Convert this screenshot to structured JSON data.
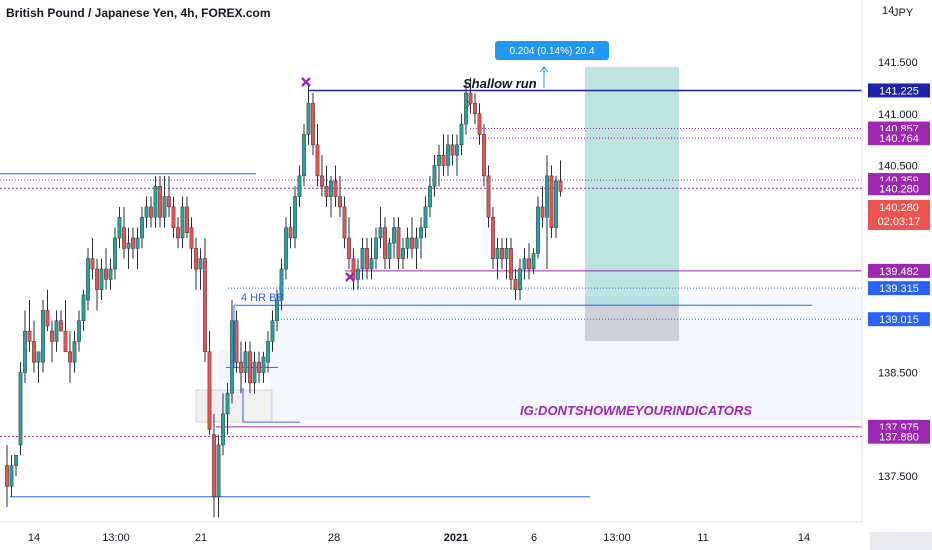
{
  "chart_data": {
    "type": "candlestick",
    "title": "British Pound / Japanese Yen, 4h, FOREX.com",
    "currency": "JPY",
    "ylim": [
      137.1,
      142.0
    ],
    "xlim": [
      0,
      227
    ],
    "y_ticks": [
      137.5,
      138.0,
      138.5,
      139.0,
      139.5,
      140.0,
      140.5,
      141.0,
      141.5
    ],
    "y_tick_labels": [
      "137.500",
      "",
      "138.500",
      "",
      "",
      "",
      "140.500",
      "141.000",
      "141.500"
    ],
    "top_tick_label": "14",
    "x_ticks": [
      {
        "x": 8,
        "label": "14",
        "bold": false
      },
      {
        "x": 28,
        "label": "13:00",
        "bold": false
      },
      {
        "x": 49,
        "label": "21",
        "bold": false
      },
      {
        "x": 81,
        "label": "28",
        "bold": false
      },
      {
        "x": 111,
        "label": "2021",
        "bold": true
      },
      {
        "x": 130,
        "label": "6",
        "bold": false
      },
      {
        "x": 150,
        "label": "13:00",
        "bold": false
      },
      {
        "x": 171,
        "label": "11",
        "bold": false
      },
      {
        "x": 195,
        "label": "14",
        "bold": false
      }
    ],
    "candles": [
      [
        0,
        137.6,
        137.8,
        137.2,
        137.4
      ],
      [
        1,
        137.4,
        137.7,
        137.3,
        137.6
      ],
      [
        2,
        137.6,
        137.7,
        137.5,
        137.7
      ],
      [
        3,
        137.8,
        138.6,
        137.7,
        138.5
      ],
      [
        4,
        138.5,
        139.1,
        138.4,
        138.9
      ],
      [
        5,
        138.9,
        139.2,
        138.7,
        138.8
      ],
      [
        6,
        138.8,
        139.0,
        138.5,
        138.6
      ],
      [
        7,
        138.6,
        138.7,
        138.4,
        138.7
      ],
      [
        8,
        138.6,
        139.2,
        138.5,
        139.1
      ],
      [
        9,
        139.1,
        139.3,
        138.9,
        138.95
      ],
      [
        10,
        138.9,
        139.0,
        138.6,
        138.8
      ],
      [
        11,
        138.8,
        139.1,
        138.7,
        139.0
      ],
      [
        12,
        139.0,
        139.1,
        138.9,
        138.9
      ],
      [
        13,
        138.9,
        139.2,
        138.7,
        138.7
      ],
      [
        14,
        138.7,
        138.9,
        138.4,
        138.6
      ],
      [
        15,
        138.6,
        138.9,
        138.5,
        138.8
      ],
      [
        16,
        138.8,
        139.1,
        138.7,
        139.0
      ],
      [
        17,
        139.0,
        139.3,
        138.9,
        139.25
      ],
      [
        18,
        139.2,
        139.7,
        139.1,
        139.6
      ],
      [
        19,
        139.6,
        139.8,
        139.4,
        139.5
      ],
      [
        20,
        139.5,
        139.6,
        139.1,
        139.3
      ],
      [
        21,
        139.3,
        139.6,
        139.2,
        139.5
      ],
      [
        22,
        139.5,
        139.7,
        139.3,
        139.4
      ],
      [
        23,
        139.4,
        139.6,
        139.3,
        139.5
      ],
      [
        24,
        139.5,
        139.9,
        139.4,
        139.8
      ],
      [
        25,
        139.8,
        140.1,
        139.7,
        140.0
      ],
      [
        26,
        139.9,
        140.1,
        139.6,
        139.7
      ],
      [
        27,
        139.7,
        139.9,
        139.5,
        139.75
      ],
      [
        28,
        139.8,
        139.9,
        139.6,
        139.7
      ],
      [
        29,
        139.7,
        139.9,
        139.5,
        139.8
      ],
      [
        30,
        139.8,
        140.1,
        139.7,
        140.0
      ],
      [
        31,
        140.0,
        140.2,
        139.9,
        140.1
      ],
      [
        32,
        140.1,
        140.2,
        139.9,
        140.0
      ],
      [
        33,
        140.0,
        140.4,
        139.9,
        140.3
      ],
      [
        34,
        140.3,
        140.4,
        139.9,
        140.0
      ],
      [
        35,
        140.0,
        140.4,
        139.9,
        140.2
      ],
      [
        36,
        140.2,
        140.4,
        140.0,
        140.1
      ],
      [
        37,
        140.1,
        140.2,
        139.8,
        139.9
      ],
      [
        38,
        139.9,
        140.0,
        139.7,
        139.8
      ],
      [
        39,
        139.8,
        140.2,
        139.7,
        140.1
      ],
      [
        40,
        140.1,
        140.2,
        139.8,
        139.85
      ],
      [
        41,
        139.9,
        140.0,
        139.5,
        139.7
      ],
      [
        42,
        139.7,
        139.8,
        139.3,
        139.5
      ],
      [
        43,
        139.5,
        139.7,
        139.3,
        139.6
      ],
      [
        44,
        139.6,
        139.8,
        138.6,
        138.7
      ],
      [
        45,
        138.7,
        138.9,
        137.9,
        137.95
      ],
      [
        46,
        137.9,
        138.1,
        137.1,
        137.3
      ],
      [
        47,
        137.3,
        137.9,
        137.1,
        137.8
      ],
      [
        48,
        137.8,
        138.3,
        137.7,
        138.1
      ],
      [
        49,
        138.1,
        138.4,
        137.9,
        138.3
      ],
      [
        50,
        138.3,
        139.2,
        138.2,
        139.0
      ],
      [
        51,
        139.0,
        139.1,
        138.5,
        138.6
      ],
      [
        52,
        138.6,
        138.8,
        138.3,
        138.5
      ],
      [
        53,
        138.5,
        138.8,
        138.4,
        138.7
      ],
      [
        54,
        138.7,
        138.8,
        138.3,
        138.4
      ],
      [
        55,
        138.4,
        138.7,
        138.3,
        138.6
      ],
      [
        56,
        138.6,
        138.7,
        138.4,
        138.5
      ],
      [
        57,
        138.5,
        138.7,
        138.4,
        138.65
      ],
      [
        58,
        138.6,
        138.9,
        138.5,
        138.8
      ],
      [
        59,
        138.8,
        139.1,
        138.7,
        139.0
      ],
      [
        60,
        139.0,
        139.3,
        138.9,
        139.2
      ],
      [
        61,
        139.2,
        139.6,
        139.1,
        139.5
      ],
      [
        62,
        139.5,
        140.0,
        139.4,
        139.9
      ],
      [
        63,
        139.9,
        140.1,
        139.7,
        139.8
      ],
      [
        64,
        139.8,
        140.3,
        139.7,
        140.2
      ],
      [
        65,
        140.2,
        140.5,
        140.1,
        140.4
      ],
      [
        66,
        140.4,
        140.9,
        140.3,
        140.8
      ],
      [
        67,
        140.8,
        141.3,
        140.7,
        141.1
      ],
      [
        68,
        141.1,
        141.2,
        140.6,
        140.7
      ],
      [
        69,
        140.7,
        140.9,
        140.3,
        140.4
      ],
      [
        70,
        140.4,
        140.6,
        140.2,
        140.3
      ],
      [
        71,
        140.3,
        140.5,
        140.1,
        140.2
      ],
      [
        72,
        140.2,
        140.4,
        140.0,
        140.35
      ],
      [
        73,
        140.35,
        140.5,
        140.1,
        140.2
      ],
      [
        74,
        140.2,
        140.4,
        140.0,
        140.1
      ],
      [
        75,
        140.1,
        140.2,
        139.7,
        139.8
      ],
      [
        76,
        139.8,
        140.0,
        139.5,
        139.6
      ],
      [
        77,
        139.6,
        139.7,
        139.3,
        139.4
      ],
      [
        78,
        139.4,
        139.6,
        139.3,
        139.5
      ],
      [
        79,
        139.5,
        139.8,
        139.4,
        139.7
      ],
      [
        80,
        139.7,
        139.8,
        139.4,
        139.5
      ],
      [
        81,
        139.5,
        139.8,
        139.4,
        139.6
      ],
      [
        82,
        139.6,
        139.9,
        139.5,
        139.8
      ],
      [
        83,
        139.8,
        140.1,
        139.7,
        139.9
      ],
      [
        84,
        139.9,
        140.0,
        139.5,
        139.6
      ],
      [
        85,
        139.6,
        139.8,
        139.5,
        139.75
      ],
      [
        86,
        139.75,
        140.0,
        139.6,
        139.9
      ],
      [
        87,
        139.9,
        140.0,
        139.5,
        139.6
      ],
      [
        88,
        139.6,
        139.8,
        139.5,
        139.7
      ],
      [
        89,
        139.7,
        139.9,
        139.6,
        139.8
      ],
      [
        90,
        139.8,
        140.0,
        139.6,
        139.7
      ],
      [
        91,
        139.7,
        139.9,
        139.5,
        139.8
      ],
      [
        92,
        139.8,
        140.0,
        139.6,
        139.9
      ],
      [
        93,
        139.9,
        140.2,
        139.8,
        140.1
      ],
      [
        94,
        140.1,
        140.4,
        140.0,
        140.3
      ],
      [
        95,
        140.3,
        140.6,
        140.2,
        140.5
      ],
      [
        96,
        140.5,
        140.7,
        140.3,
        140.6
      ],
      [
        97,
        140.6,
        140.8,
        140.4,
        140.5
      ],
      [
        98,
        140.5,
        140.8,
        140.4,
        140.7
      ],
      [
        99,
        140.7,
        140.8,
        140.5,
        140.6
      ],
      [
        100,
        140.6,
        140.8,
        140.4,
        140.7
      ],
      [
        101,
        140.7,
        141.0,
        140.6,
        140.9
      ],
      [
        102,
        140.9,
        141.3,
        140.8,
        141.2
      ],
      [
        103,
        141.2,
        141.35,
        141.0,
        141.1
      ],
      [
        104,
        141.1,
        141.2,
        140.9,
        141.0
      ],
      [
        105,
        141.0,
        141.1,
        140.7,
        140.8
      ],
      [
        106,
        140.8,
        140.9,
        140.3,
        140.4
      ],
      [
        107,
        140.4,
        140.5,
        139.9,
        140.0
      ],
      [
        108,
        140.0,
        140.1,
        139.5,
        139.6
      ],
      [
        109,
        139.6,
        139.8,
        139.4,
        139.7
      ],
      [
        110,
        139.7,
        139.8,
        139.5,
        139.6
      ],
      [
        111,
        139.6,
        139.8,
        139.4,
        139.7
      ],
      [
        112,
        139.7,
        139.8,
        139.3,
        139.4
      ],
      [
        113,
        139.4,
        139.5,
        139.2,
        139.3
      ],
      [
        114,
        139.3,
        139.6,
        139.2,
        139.5
      ],
      [
        115,
        139.5,
        139.7,
        139.4,
        139.6
      ],
      [
        116,
        139.6,
        139.75,
        139.4,
        139.5
      ],
      [
        117,
        139.5,
        139.7,
        139.45,
        139.65
      ],
      [
        118,
        139.65,
        140.2,
        139.6,
        140.1
      ],
      [
        119,
        140.1,
        140.3,
        139.9,
        140.0
      ],
      [
        120,
        140.0,
        140.6,
        139.5,
        140.4
      ],
      [
        121,
        140.4,
        140.5,
        139.8,
        139.9
      ],
      [
        122,
        139.9,
        140.4,
        139.8,
        140.35
      ],
      [
        123,
        140.35,
        140.55,
        140.2,
        140.25
      ]
    ]
  },
  "price_tags": [
    {
      "value": 141.225,
      "label": "141.225",
      "color": "#1e22aa"
    },
    {
      "value": 140.857,
      "label": "140.857",
      "color": "#9c27b0"
    },
    {
      "value": 140.764,
      "label": "140.764",
      "color": "#9c27b0"
    },
    {
      "value": 140.359,
      "label": "140.359",
      "color": "#9c27b0"
    },
    {
      "value": 140.28,
      "label": "140.280",
      "color": "#9c27b0"
    },
    {
      "value": 139.482,
      "label": "139.482",
      "color": "#9c27b0"
    },
    {
      "value": 139.315,
      "label": "139.315",
      "color": "#2962ff"
    },
    {
      "value": 139.015,
      "label": "139.015",
      "color": "#2962ff"
    },
    {
      "value": 137.975,
      "label": "137.975",
      "color": "#9c27b0"
    },
    {
      "value": 137.88,
      "label": "137.880",
      "color": "#9c27b0"
    }
  ],
  "last_price": {
    "value": 140.28,
    "label": "140.280",
    "countdown": "02:03:17",
    "color": "#ef5350"
  },
  "annotations": {
    "shallow_run": "Shallow run",
    "watermark": "IG:DONTSHOWMEYOURINDICATORS",
    "bb_label": "4 HR BB",
    "measure": "0.204 (0.14%) 20.4"
  },
  "colors": {
    "up": "#26a69a",
    "down": "#ef5350",
    "blue_line": "#2962ff",
    "purple": "#9c27b0",
    "navy": "#1e22aa"
  }
}
